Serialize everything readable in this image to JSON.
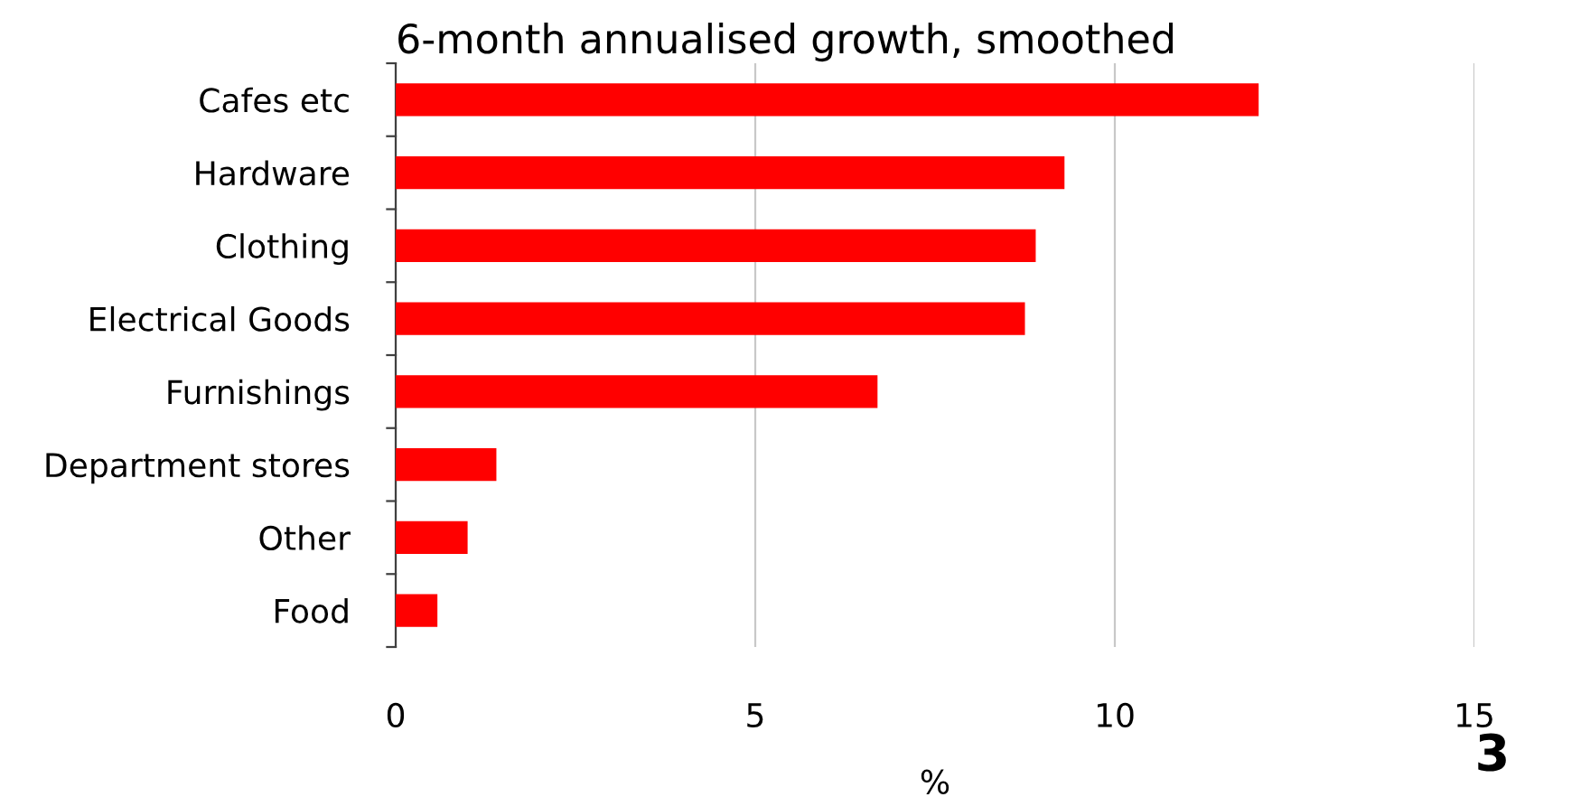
{
  "chart_data": {
    "type": "bar",
    "orientation": "horizontal",
    "title": "6-month annualised growth, smoothed",
    "categories": [
      "Cafes etc",
      "Hardware",
      "Clothing",
      "Electrical Goods",
      "Furnishings",
      "Department stores",
      "Other",
      "Food"
    ],
    "values": [
      12.0,
      9.3,
      8.9,
      8.75,
      6.7,
      1.4,
      1.0,
      0.58
    ],
    "color": "#ff0000",
    "xlim": [
      0,
      15
    ],
    "xticks": [
      0,
      5,
      10,
      15
    ],
    "grid": "x",
    "xlabel": "%",
    "annotations": [
      "3"
    ]
  }
}
